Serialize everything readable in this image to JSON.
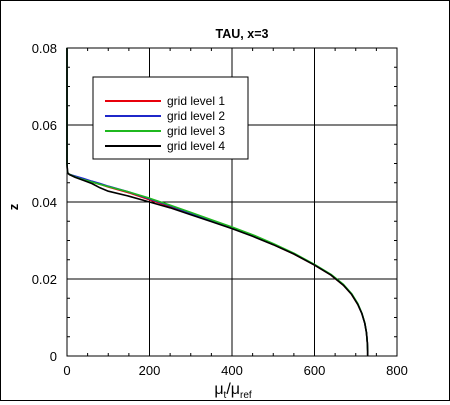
{
  "chart_data": {
    "type": "line",
    "title": "TAU, x=3",
    "xlabel_main": "μ",
    "xlabel_sub1": "t",
    "xlabel_sep": "/μ",
    "xlabel_sub2": "ref",
    "ylabel": "z",
    "xlim": [
      0,
      800
    ],
    "ylim": [
      0,
      0.08
    ],
    "x_ticks": [
      0,
      200,
      400,
      600,
      800
    ],
    "y_ticks": [
      0,
      0.02,
      0.04,
      0.06,
      0.08
    ],
    "x_tick_labels": [
      "0",
      "200",
      "400",
      "600",
      "800"
    ],
    "y_tick_labels": [
      "0",
      "0.02",
      "0.04",
      "0.06",
      "0.08"
    ],
    "grid": true,
    "legend_position": "top-left",
    "series": [
      {
        "name": "grid level 1",
        "color": "#e8000b",
        "x": [
          0,
          0,
          1,
          2,
          4,
          6,
          8,
          20,
          40,
          60,
          80,
          100,
          150,
          200,
          250,
          300,
          350,
          400,
          450,
          500,
          550,
          600,
          640,
          670,
          690,
          705,
          715,
          722,
          726,
          728,
          729,
          729
        ],
        "z": [
          0.08,
          0.05,
          0.048,
          0.0475,
          0.0473,
          0.0472,
          0.0471,
          0.0466,
          0.046,
          0.0452,
          0.0446,
          0.0439,
          0.0424,
          0.0406,
          0.0388,
          0.0369,
          0.0351,
          0.0332,
          0.0312,
          0.0289,
          0.0265,
          0.0236,
          0.021,
          0.0184,
          0.016,
          0.0134,
          0.011,
          0.0085,
          0.006,
          0.0035,
          0.0012,
          0
        ]
      },
      {
        "name": "grid level 2",
        "color": "#1f27c9",
        "x": [
          0,
          0,
          1,
          2,
          4,
          6,
          8,
          20,
          40,
          60,
          80,
          100,
          150,
          200,
          250,
          300,
          350,
          400,
          450,
          500,
          550,
          600,
          640,
          670,
          690,
          705,
          715,
          722,
          726,
          728,
          729,
          729
        ],
        "z": [
          0.08,
          0.05,
          0.048,
          0.0475,
          0.0473,
          0.0472,
          0.0471,
          0.0467,
          0.0461,
          0.0454,
          0.0448,
          0.0441,
          0.0426,
          0.0408,
          0.039,
          0.0371,
          0.0352,
          0.0333,
          0.0313,
          0.029,
          0.0266,
          0.0237,
          0.0211,
          0.0185,
          0.0161,
          0.0135,
          0.011,
          0.0085,
          0.006,
          0.0035,
          0.0012,
          0
        ]
      },
      {
        "name": "grid level 3",
        "color": "#1fb81f",
        "x": [
          0,
          0,
          1,
          2,
          4,
          6,
          8,
          20,
          40,
          60,
          80,
          100,
          150,
          200,
          250,
          300,
          350,
          400,
          450,
          500,
          550,
          600,
          640,
          670,
          690,
          705,
          715,
          722,
          726,
          728,
          729,
          729
        ],
        "z": [
          0.08,
          0.05,
          0.048,
          0.0475,
          0.0473,
          0.0472,
          0.0471,
          0.0465,
          0.0458,
          0.0452,
          0.0446,
          0.044,
          0.0426,
          0.041,
          0.0392,
          0.0373,
          0.0354,
          0.0335,
          0.0315,
          0.0292,
          0.0267,
          0.0238,
          0.0212,
          0.0186,
          0.0162,
          0.0136,
          0.0111,
          0.0086,
          0.006,
          0.0035,
          0.0012,
          0
        ]
      },
      {
        "name": "grid level 4",
        "color": "#000000",
        "x": [
          0,
          0,
          1,
          2,
          4,
          6,
          8,
          20,
          40,
          60,
          80,
          100,
          150,
          200,
          250,
          300,
          350,
          400,
          450,
          500,
          550,
          600,
          640,
          670,
          690,
          705,
          715,
          722,
          726,
          728,
          729,
          729
        ],
        "z": [
          0.08,
          0.05,
          0.048,
          0.0475,
          0.0473,
          0.0471,
          0.047,
          0.0464,
          0.0456,
          0.0448,
          0.0437,
          0.0428,
          0.0415,
          0.04,
          0.0385,
          0.0367,
          0.0349,
          0.0331,
          0.0311,
          0.0289,
          0.0265,
          0.0236,
          0.021,
          0.0184,
          0.016,
          0.0134,
          0.011,
          0.0085,
          0.006,
          0.0035,
          0.0012,
          0
        ]
      }
    ]
  }
}
